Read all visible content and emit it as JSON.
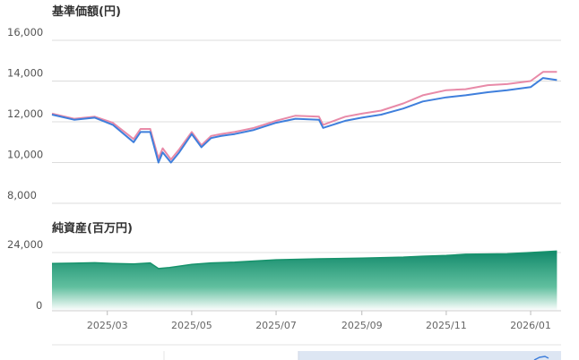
{
  "chart_data": [
    {
      "type": "line",
      "title": "基準価額(円)",
      "ylim": [
        8000,
        16000
      ],
      "yticks": [
        8000,
        10000,
        12000,
        14000,
        16000
      ],
      "ytick_labels": [
        "8,000",
        "10,000",
        "12,000",
        "14,000",
        "16,000"
      ],
      "grid": true,
      "colors": [
        "#e88aa8",
        "#3f7fdc"
      ],
      "x": [
        "2025-01-20",
        "2025-02-05",
        "2025-02-20",
        "2025-03-05",
        "2025-03-20",
        "2025-03-25",
        "2025-04-01",
        "2025-04-07",
        "2025-04-10",
        "2025-04-16",
        "2025-04-22",
        "2025-05-01",
        "2025-05-08",
        "2025-05-15",
        "2025-05-22",
        "2025-06-01",
        "2025-06-15",
        "2025-07-01",
        "2025-07-15",
        "2025-08-01",
        "2025-08-04",
        "2025-08-20",
        "2025-09-01",
        "2025-09-15",
        "2025-10-01",
        "2025-10-15",
        "2025-11-01",
        "2025-11-15",
        "2025-12-01",
        "2025-12-15",
        "2026-01-01",
        "2026-01-10",
        "2026-01-20"
      ],
      "series": [
        {
          "values": [
            12400,
            12150,
            12250,
            11950,
            11150,
            11650,
            11650,
            10200,
            10700,
            10150,
            10650,
            11500,
            10850,
            11300,
            11400,
            11500,
            11700,
            12050,
            12300,
            12250,
            11850,
            12250,
            12400,
            12550,
            12900,
            13300,
            13550,
            13600,
            13800,
            13850,
            14000,
            14450,
            14450
          ]
        },
        {
          "values": [
            12350,
            12100,
            12200,
            11850,
            11000,
            11500,
            11500,
            10000,
            10500,
            10000,
            10500,
            11400,
            10750,
            11200,
            11300,
            11400,
            11600,
            11950,
            12150,
            12100,
            11700,
            12050,
            12200,
            12350,
            12650,
            13000,
            13200,
            13300,
            13450,
            13550,
            13700,
            14150,
            14050
          ]
        }
      ]
    },
    {
      "type": "area",
      "title": "純資産(百万円)",
      "ylim": [
        0,
        24000
      ],
      "yticks": [
        0,
        24000
      ],
      "ytick_labels": [
        "0",
        "24,000"
      ],
      "colors": [
        "#17936c"
      ],
      "x": [
        "2025-01-20",
        "2025-02-05",
        "2025-02-20",
        "2025-03-05",
        "2025-03-20",
        "2025-04-01",
        "2025-04-07",
        "2025-04-15",
        "2025-05-01",
        "2025-05-15",
        "2025-06-01",
        "2025-06-15",
        "2025-07-01",
        "2025-08-01",
        "2025-09-01",
        "2025-10-01",
        "2025-10-15",
        "2025-11-01",
        "2025-11-15",
        "2025-12-01",
        "2025-12-15",
        "2026-01-01",
        "2026-01-20"
      ],
      "series": [
        {
          "values": [
            19500,
            19600,
            19800,
            19500,
            19300,
            19700,
            17400,
            17800,
            19100,
            19700,
            20000,
            20500,
            21000,
            21400,
            21700,
            22100,
            22500,
            22800,
            23300,
            23400,
            23500,
            24000,
            24600
          ]
        }
      ]
    }
  ],
  "x_axis": {
    "xlim": [
      "2025-01-20",
      "2026-01-23"
    ],
    "ticks": [
      "2025-03-01",
      "2025-05-01",
      "2025-07-01",
      "2025-09-01",
      "2025-11-01",
      "2026-01-01"
    ],
    "tick_labels": [
      "2025/03",
      "2025/05",
      "2025/07",
      "2025/09",
      "2025/11",
      "2026/01"
    ]
  }
}
